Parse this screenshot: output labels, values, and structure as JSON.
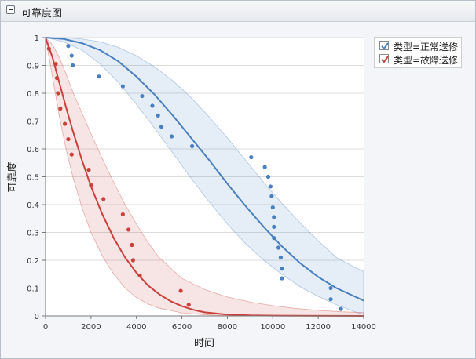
{
  "panel": {
    "title": "可靠度图"
  },
  "chart_data": {
    "type": "line",
    "xlabel": "时间",
    "ylabel": "可靠度",
    "xlim": [
      0,
      14000
    ],
    "ylim": [
      0,
      1
    ],
    "xticks": [
      0,
      2000,
      4000,
      6000,
      8000,
      10000,
      12000,
      14000
    ],
    "xtick_labels": [
      "0",
      "2000",
      "4000",
      "6000",
      "8000",
      "10000",
      "12000",
      "14000"
    ],
    "yticks": [
      0,
      0.1,
      0.2,
      0.3,
      0.4,
      0.5,
      0.6,
      0.7,
      0.8,
      0.9,
      1
    ],
    "ytick_labels": [
      "0",
      "0.1",
      "0.2",
      "0.3",
      "0.4",
      "0.5",
      "0.6",
      "0.7",
      "0.8",
      "0.9",
      "1"
    ],
    "grid": true,
    "legend_position": "right",
    "series": [
      {
        "name": "类型=正常送修",
        "color": "#4a7fc0",
        "points": [
          [
            1000,
            0.97
          ],
          [
            1150,
            0.935
          ],
          [
            1200,
            0.9
          ],
          [
            2350,
            0.86
          ],
          [
            3400,
            0.825
          ],
          [
            4250,
            0.79
          ],
          [
            4700,
            0.755
          ],
          [
            4950,
            0.72
          ],
          [
            5100,
            0.68
          ],
          [
            5550,
            0.645
          ],
          [
            6450,
            0.61
          ],
          [
            9050,
            0.57
          ],
          [
            9650,
            0.535
          ],
          [
            9800,
            0.5
          ],
          [
            9900,
            0.465
          ],
          [
            9950,
            0.43
          ],
          [
            10000,
            0.39
          ],
          [
            10050,
            0.355
          ],
          [
            10050,
            0.32
          ],
          [
            10050,
            0.28
          ],
          [
            10250,
            0.245
          ],
          [
            10350,
            0.21
          ],
          [
            10400,
            0.17
          ],
          [
            10400,
            0.135
          ],
          [
            12550,
            0.1
          ],
          [
            12550,
            0.06
          ],
          [
            13000,
            0.025
          ]
        ],
        "curve": [
          [
            0,
            1
          ],
          [
            800,
            0.995
          ],
          [
            1600,
            0.98
          ],
          [
            2400,
            0.955
          ],
          [
            3200,
            0.915
          ],
          [
            4000,
            0.86
          ],
          [
            4800,
            0.795
          ],
          [
            5600,
            0.72
          ],
          [
            6400,
            0.64
          ],
          [
            7200,
            0.56
          ],
          [
            8000,
            0.475
          ],
          [
            8800,
            0.395
          ],
          [
            9600,
            0.32
          ],
          [
            10400,
            0.25
          ],
          [
            11200,
            0.19
          ],
          [
            12000,
            0.14
          ],
          [
            12800,
            0.1
          ],
          [
            13600,
            0.07
          ],
          [
            14000,
            0.055
          ]
        ],
        "band_upper": [
          [
            0,
            1
          ],
          [
            800,
            1
          ],
          [
            1600,
            0.995
          ],
          [
            2400,
            0.985
          ],
          [
            3200,
            0.965
          ],
          [
            4000,
            0.935
          ],
          [
            4800,
            0.895
          ],
          [
            5600,
            0.845
          ],
          [
            6400,
            0.785
          ],
          [
            7200,
            0.715
          ],
          [
            8000,
            0.64
          ],
          [
            8800,
            0.56
          ],
          [
            9600,
            0.48
          ],
          [
            10400,
            0.405
          ],
          [
            11200,
            0.335
          ],
          [
            12000,
            0.27
          ],
          [
            12800,
            0.21
          ],
          [
            13600,
            0.175
          ],
          [
            14000,
            0.16
          ]
        ],
        "band_lower": [
          [
            0,
            1
          ],
          [
            800,
            0.985
          ],
          [
            1600,
            0.955
          ],
          [
            2400,
            0.905
          ],
          [
            3200,
            0.84
          ],
          [
            4000,
            0.76
          ],
          [
            4800,
            0.675
          ],
          [
            5600,
            0.585
          ],
          [
            6400,
            0.495
          ],
          [
            7200,
            0.41
          ],
          [
            8000,
            0.33
          ],
          [
            8800,
            0.26
          ],
          [
            9600,
            0.2
          ],
          [
            10400,
            0.15
          ],
          [
            11200,
            0.105
          ],
          [
            12000,
            0.07
          ],
          [
            12800,
            0.04
          ],
          [
            13600,
            0.015
          ],
          [
            14000,
            0.005
          ]
        ]
      },
      {
        "name": "类型=故障送修",
        "color": "#c8413d",
        "points": [
          [
            150,
            0.96
          ],
          [
            450,
            0.905
          ],
          [
            500,
            0.855
          ],
          [
            550,
            0.8
          ],
          [
            650,
            0.745
          ],
          [
            850,
            0.69
          ],
          [
            1000,
            0.635
          ],
          [
            1150,
            0.58
          ],
          [
            1900,
            0.525
          ],
          [
            2000,
            0.47
          ],
          [
            2550,
            0.42
          ],
          [
            3400,
            0.365
          ],
          [
            3650,
            0.31
          ],
          [
            3800,
            0.255
          ],
          [
            3850,
            0.2
          ],
          [
            4150,
            0.145
          ],
          [
            5950,
            0.09
          ],
          [
            6300,
            0.04
          ]
        ],
        "curve": [
          [
            0,
            1
          ],
          [
            300,
            0.93
          ],
          [
            600,
            0.84
          ],
          [
            900,
            0.75
          ],
          [
            1200,
            0.665
          ],
          [
            1600,
            0.56
          ],
          [
            2000,
            0.465
          ],
          [
            2500,
            0.365
          ],
          [
            3000,
            0.28
          ],
          [
            3500,
            0.21
          ],
          [
            4000,
            0.155
          ],
          [
            4500,
            0.11
          ],
          [
            5000,
            0.078
          ],
          [
            5500,
            0.053
          ],
          [
            6000,
            0.035
          ],
          [
            6500,
            0.022
          ],
          [
            7000,
            0.013
          ],
          [
            8000,
            0.005
          ],
          [
            9000,
            0.002
          ],
          [
            10000,
            0.001
          ],
          [
            14000,
            0
          ]
        ],
        "band_upper": [
          [
            0,
            1
          ],
          [
            300,
            0.975
          ],
          [
            600,
            0.93
          ],
          [
            900,
            0.87
          ],
          [
            1200,
            0.805
          ],
          [
            1600,
            0.73
          ],
          [
            2000,
            0.655
          ],
          [
            2500,
            0.565
          ],
          [
            3000,
            0.48
          ],
          [
            3500,
            0.4
          ],
          [
            4000,
            0.33
          ],
          [
            4500,
            0.265
          ],
          [
            5000,
            0.21
          ],
          [
            6000,
            0.135
          ],
          [
            7000,
            0.095
          ],
          [
            8000,
            0.068
          ],
          [
            9000,
            0.05
          ],
          [
            10000,
            0.037
          ],
          [
            11000,
            0.027
          ],
          [
            12000,
            0.02
          ],
          [
            13000,
            0.015
          ],
          [
            14000,
            0.012
          ]
        ],
        "band_lower": [
          [
            0,
            1
          ],
          [
            300,
            0.86
          ],
          [
            600,
            0.72
          ],
          [
            900,
            0.6
          ],
          [
            1200,
            0.5
          ],
          [
            1600,
            0.39
          ],
          [
            2000,
            0.3
          ],
          [
            2500,
            0.215
          ],
          [
            3000,
            0.15
          ],
          [
            3500,
            0.1
          ],
          [
            4000,
            0.066
          ],
          [
            4500,
            0.043
          ],
          [
            5000,
            0.028
          ],
          [
            6000,
            0.011
          ],
          [
            7000,
            0.004
          ],
          [
            8000,
            0.001
          ],
          [
            14000,
            0
          ]
        ]
      }
    ]
  }
}
